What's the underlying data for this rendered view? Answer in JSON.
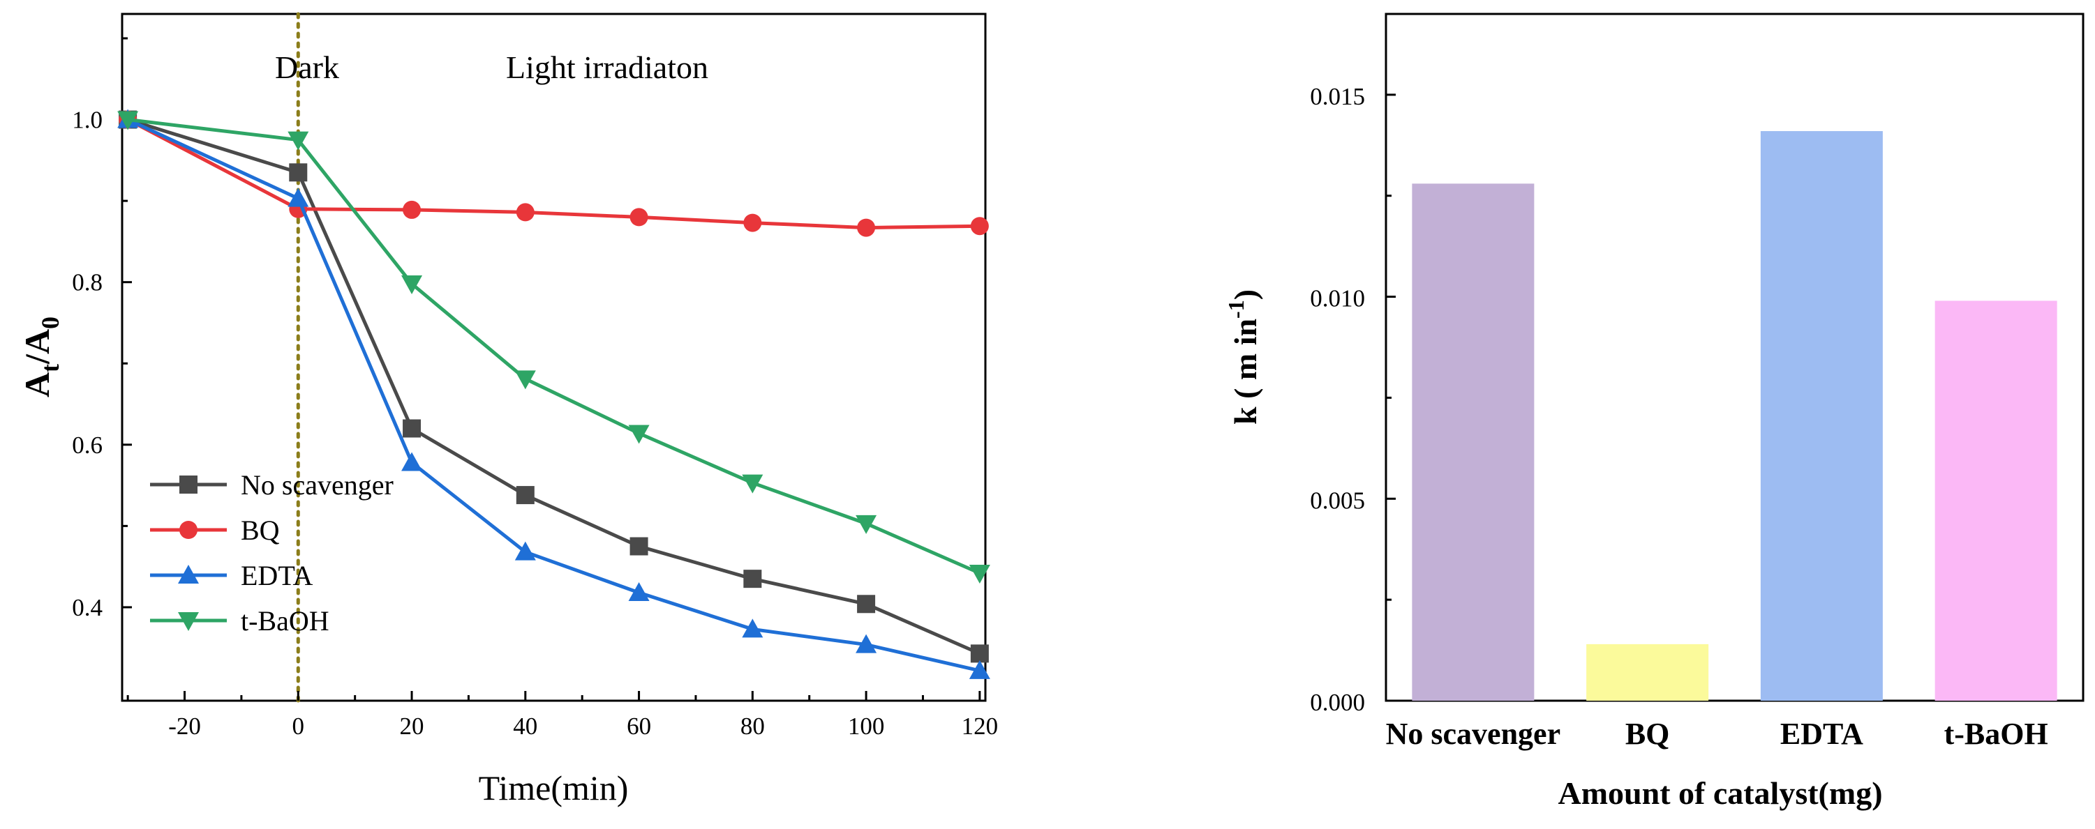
{
  "chart_data": [
    {
      "type": "line",
      "xlabel": "Time(min)",
      "ylabel": {
        "main": "A",
        "sub1": "t",
        "slash": "/A",
        "sub2": "0"
      },
      "xlim": [
        -31,
        121
      ],
      "ylim": [
        0.285,
        1.13
      ],
      "xticks": [
        -20,
        0,
        20,
        40,
        60,
        80,
        100,
        120
      ],
      "yticks": [
        0.4,
        0.6,
        0.8,
        1.0
      ],
      "yticks_minor": [
        0.5,
        0.7,
        0.9,
        1.1
      ],
      "xtick_labels": [
        "-20",
        "0",
        "20",
        "40",
        "60",
        "80",
        "100",
        "120"
      ],
      "ytick_labels": [
        "0.4",
        "0.6",
        "0.8",
        "1.0"
      ],
      "x": [
        -30,
        0,
        20,
        40,
        60,
        80,
        100,
        120
      ],
      "series": [
        {
          "name": "No scavenger",
          "color": "#4a4a4a",
          "marker": "square",
          "values": [
            1.0,
            0.935,
            0.62,
            0.538,
            0.475,
            0.435,
            0.404,
            0.343
          ]
        },
        {
          "name": "BQ",
          "color": "#e8363a",
          "marker": "circle",
          "values": [
            1.0,
            0.89,
            0.889,
            0.886,
            0.88,
            0.873,
            0.867,
            0.869
          ]
        },
        {
          "name": "EDTA",
          "color": "#1f6fd6",
          "marker": "triangle-up",
          "values": [
            1.0,
            0.903,
            0.578,
            0.468,
            0.418,
            0.373,
            0.354,
            0.322
          ]
        },
        {
          "name": "t-BaOH",
          "color": "#2ea565",
          "marker": "triangle-down",
          "values": [
            1.0,
            0.975,
            0.798,
            0.681,
            0.614,
            0.553,
            0.503,
            0.442
          ]
        }
      ],
      "vline": {
        "x": 0,
        "color": "#8b7d1a",
        "style": "dotted"
      },
      "annotations": {
        "left": "Dark",
        "right": "Light irradiaton"
      },
      "legend_position": "lower-left",
      "grid": false
    },
    {
      "type": "bar",
      "xlabel": "Amount of catalyst(mg)",
      "ylabel": {
        "main": "k ( m in",
        "sup": "-1",
        "close": ")"
      },
      "ylim": [
        0,
        0.017
      ],
      "yticks": [
        0.0,
        0.005,
        0.01,
        0.015
      ],
      "yticks_minor": [
        0.0025,
        0.0075,
        0.0125
      ],
      "ytick_labels": [
        "0.000",
        "0.005",
        "0.010",
        "0.015"
      ],
      "categories": [
        "No scavenger",
        "BQ",
        "EDTA",
        "t-BaOH"
      ],
      "values": [
        0.0128,
        0.0014,
        0.0141,
        0.0099
      ],
      "colors": [
        "#c2b0d6",
        "#fbfa9b",
        "#9dbcf2",
        "#fbb8f6"
      ],
      "grid": false
    }
  ]
}
